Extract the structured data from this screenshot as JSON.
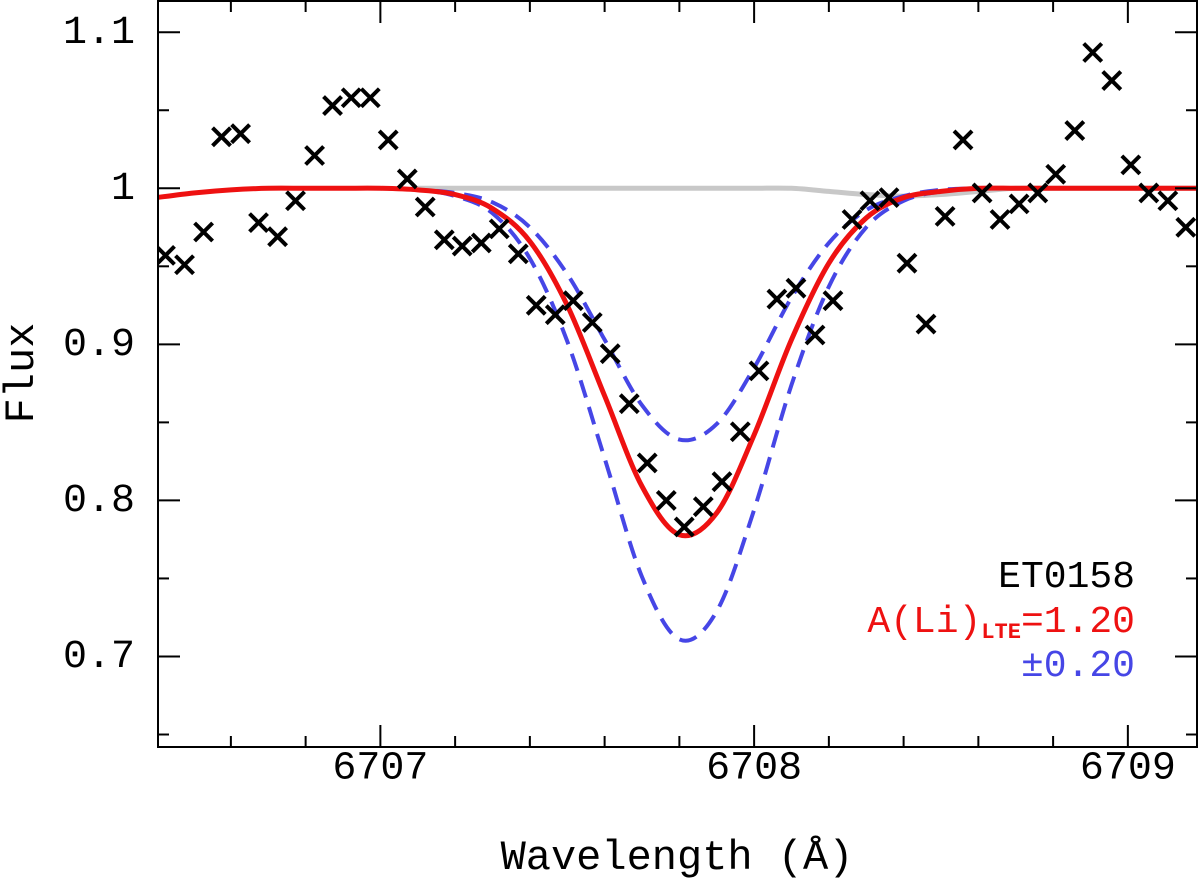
{
  "chart_data": {
    "type": "scatter",
    "xlabel": "Wavelength (Å)",
    "ylabel": "Flux",
    "xlim": [
      6706.405,
      6709.185
    ],
    "ylim": [
      0.642,
      1.12
    ],
    "xticks": [
      6707,
      6708,
      6709
    ],
    "yticks": [
      0.7,
      0.8,
      0.9,
      1,
      1.1
    ],
    "xminor_ticks": [
      6706.6,
      6706.8,
      6707.2,
      6707.4,
      6707.6,
      6707.8,
      6708.2,
      6708.4,
      6708.6,
      6708.8,
      6709.2
    ],
    "yminor_ticks": [
      0.65,
      0.75,
      0.85,
      0.95,
      1.05
    ],
    "points": {
      "color": "#000000",
      "x": [
        6706.425,
        6706.476,
        6706.527,
        6706.575,
        6706.626,
        6706.674,
        6706.725,
        6706.773,
        6706.824,
        6706.872,
        6706.922,
        6706.973,
        6707.021,
        6707.072,
        6707.12,
        6707.171,
        6707.219,
        6707.27,
        6707.318,
        6707.369,
        6707.417,
        6707.468,
        6707.516,
        6707.567,
        6707.615,
        6707.666,
        6707.714,
        6707.765,
        6707.813,
        6707.864,
        6707.914,
        6707.963,
        6708.013,
        6708.061,
        6708.112,
        6708.163,
        6708.211,
        6708.262,
        6708.31,
        6708.361,
        6708.409,
        6708.46,
        6708.511,
        6708.559,
        6708.61,
        6708.658,
        6708.709,
        6708.759,
        6708.807,
        6708.858,
        6708.906,
        6708.957,
        6709.008,
        6709.056,
        6709.107,
        6709.155
      ],
      "values": [
        0.957,
        0.951,
        0.972,
        1.033,
        1.035,
        0.978,
        0.969,
        0.992,
        1.021,
        1.053,
        1.058,
        1.058,
        1.031,
        1.006,
        0.988,
        0.967,
        0.963,
        0.965,
        0.974,
        0.958,
        0.925,
        0.919,
        0.928,
        0.914,
        0.894,
        0.862,
        0.824,
        0.8,
        0.783,
        0.796,
        0.812,
        0.844,
        0.883,
        0.929,
        0.936,
        0.906,
        0.928,
        0.98,
        0.992,
        0.994,
        0.952,
        0.913,
        0.982,
        1.031,
        0.997,
        0.98,
        0.99,
        0.997,
        1.009,
        1.037,
        1.087,
        1.069,
        1.015,
        0.997,
        0.992,
        0.975
      ]
    },
    "x": [
      6706.4,
      6706.5,
      6706.6,
      6706.7,
      6706.8,
      6706.9,
      6707.0,
      6707.1,
      6707.2,
      6707.3,
      6707.4,
      6707.5,
      6707.6,
      6707.7,
      6707.8,
      6707.9,
      6708.0,
      6708.1,
      6708.2,
      6708.3,
      6708.4,
      6708.5,
      6708.6,
      6708.7,
      6708.8,
      6708.9,
      6709.0,
      6709.1,
      6709.2
    ],
    "series": [
      {
        "color": "#c8c8c8",
        "dash": false,
        "width": 5,
        "values": [
          null,
          null,
          null,
          null,
          null,
          null,
          null,
          1,
          1,
          1,
          1,
          1,
          1,
          1,
          1,
          1,
          1,
          1,
          0.998,
          0.996,
          0.995,
          0.996,
          0.998,
          1,
          1,
          1,
          1,
          1,
          1
        ]
      },
      {
        "color": "#4646e6",
        "dash": true,
        "width": 4,
        "values": [
          null,
          null,
          null,
          null,
          null,
          null,
          1,
          0.999,
          0.995,
          0.984,
          0.955,
          0.902,
          0.827,
          0.751,
          0.711,
          0.729,
          0.794,
          0.874,
          0.937,
          0.975,
          0.992,
          0.998,
          1.0,
          null,
          null,
          null,
          null,
          null,
          null
        ]
      },
      {
        "color": "#4646e6",
        "dash": true,
        "width": 4,
        "values": [
          null,
          null,
          null,
          null,
          null,
          null,
          1,
          0.999,
          0.997,
          0.991,
          0.975,
          0.945,
          0.903,
          0.861,
          0.839,
          0.849,
          0.885,
          0.93,
          0.965,
          0.986,
          0.995,
          0.999,
          1.0,
          null,
          null,
          null,
          null,
          null,
          null
        ]
      },
      {
        "color": "#ee1111",
        "dash": false,
        "width": 5,
        "values": [
          0.994,
          0.997,
          0.999,
          1,
          1,
          1,
          1,
          0.999,
          0.996,
          0.987,
          0.966,
          0.925,
          0.867,
          0.809,
          0.778,
          0.792,
          0.842,
          0.903,
          0.952,
          0.981,
          0.994,
          0.998,
          1.0,
          1,
          1,
          1,
          1,
          1,
          1
        ]
      }
    ],
    "annotations": {
      "star": {
        "text": "ET0158",
        "color": "#000000"
      },
      "abundance": {
        "text": "A(Li)",
        "sub": "LTE",
        "rest": "=1.20",
        "color": "#ee1111"
      },
      "error": {
        "text": "±0.20",
        "color": "#4646e6"
      }
    }
  }
}
